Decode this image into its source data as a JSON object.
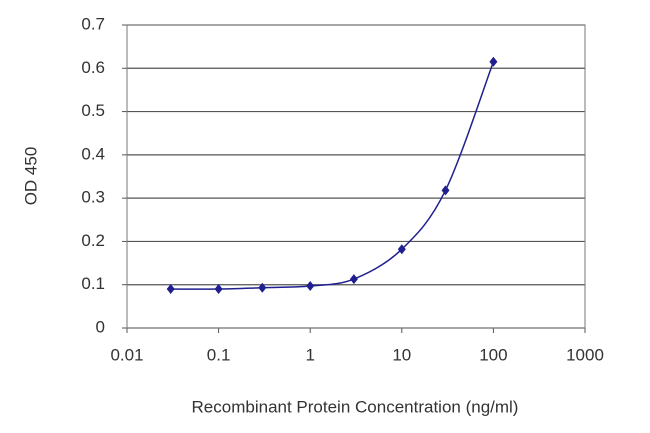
{
  "chart_data": {
    "type": "line",
    "x_label": "Recombinant Protein Concentration (ng/ml)",
    "y_label": "OD 450",
    "x": [
      0.03,
      0.1,
      0.3,
      1,
      3,
      10,
      30,
      100
    ],
    "series": [
      {
        "color": "#1f1f8f",
        "values": [
          0.09,
          0.09,
          0.093,
          0.097,
          0.113,
          0.182,
          0.318,
          0.615
        ]
      }
    ],
    "x_log": true,
    "xlim": [
      0.01,
      1000
    ],
    "xticks": [
      0.01,
      0.1,
      1,
      10,
      100,
      1000
    ],
    "ylim": [
      0,
      0.7
    ],
    "yticks": [
      0,
      0.1,
      0.2,
      0.3,
      0.4,
      0.5,
      0.6,
      0.7
    ],
    "grid": true
  }
}
